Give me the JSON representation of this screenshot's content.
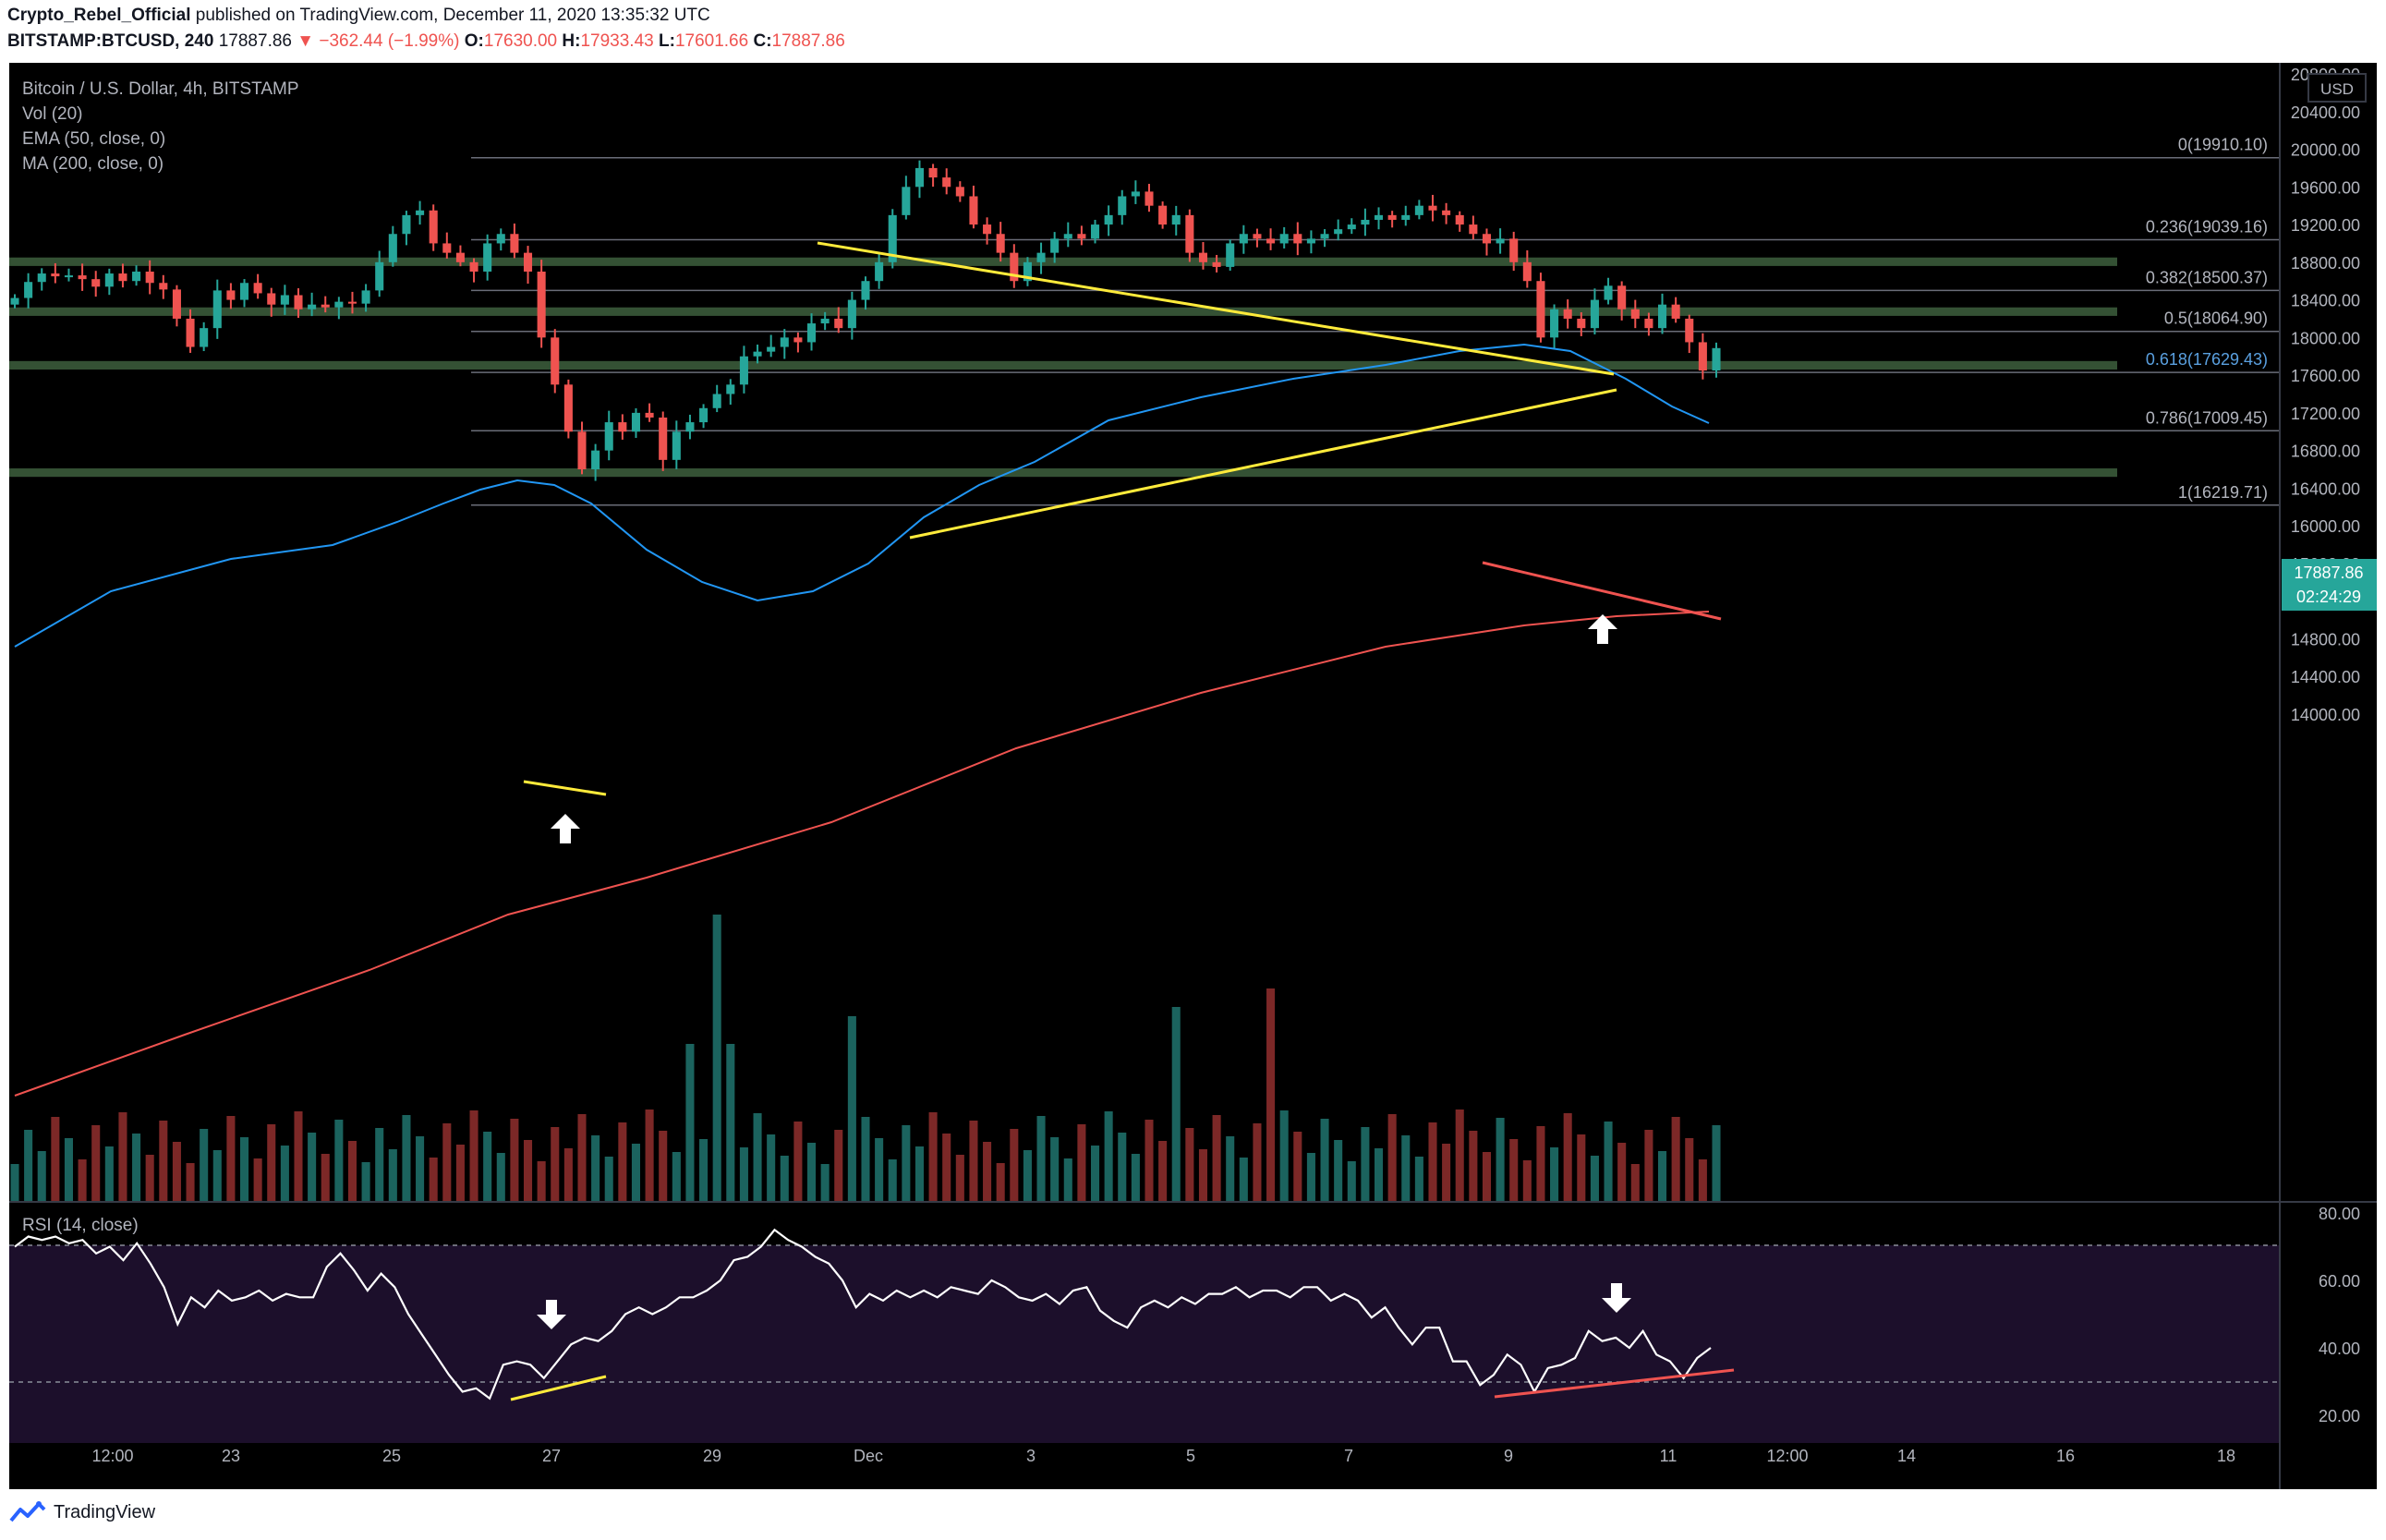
{
  "header": {
    "publisher": "Crypto_Rebel_Official",
    "published_text": "published on TradingView.com, December 11, 2020 13:35:32 UTC",
    "symbol": "BITSTAMP:BTCUSD, 240",
    "last_price": "17887.86",
    "change": "−362.44 (−1.99%)",
    "o_label": "O:",
    "o_value": "17630.00",
    "h_label": "H:",
    "h_value": "17933.43",
    "l_label": "L:",
    "l_value": "17601.66",
    "c_label": "C:",
    "c_value": "17887.86"
  },
  "legend": {
    "title": "Bitcoin / U.S. Dollar, 4h, BITSTAMP",
    "vol": "Vol (20)",
    "ema": "EMA (50, close, 0)",
    "ma": "MA (200, close, 0)",
    "rsi": "RSI (14, close)"
  },
  "currency_badge": "USD",
  "price_tag": {
    "price": "17887.86",
    "countdown": "02:24:29"
  },
  "fib_labels": [
    {
      "text": "0(19910.10)",
      "price": 19910.1
    },
    {
      "text": "0.236(19039.16)",
      "price": 19039.16
    },
    {
      "text": "0.382(18500.37)",
      "price": 18500.37
    },
    {
      "text": "0.5(18064.90)",
      "price": 18064.9
    },
    {
      "text": "0.618(17629.43)",
      "price": 17629.43
    },
    {
      "text": "0.786(17009.45)",
      "price": 17009.45
    },
    {
      "text": "1(16219.71)",
      "price": 16219.71
    }
  ],
  "footer": {
    "brand": "TradingView"
  },
  "colors": {
    "background": "#000000",
    "up": "#26a69a",
    "down": "#ef5350",
    "ema": "#2196f3",
    "ma": "#ef5350",
    "trendline": "#ffeb3b",
    "zone": "#3a5a3a",
    "rsi_band": "#1c0f2b",
    "rsi_line": "#ffffff"
  },
  "chart_data": [
    {
      "type": "candlestick",
      "title": "Bitcoin / U.S. Dollar, 4h, BITSTAMP",
      "interval": "4h",
      "ylim": [
        13800,
        21100
      ],
      "y_ticks": [
        "20800.00",
        "20400.00",
        "20000.00",
        "19600.00",
        "19200.00",
        "18800.00",
        "18400.00",
        "18000.00",
        "17600.00",
        "17200.00",
        "16800.00",
        "16400.00",
        "16000.00",
        "15600.00",
        "15200.00",
        "14800.00",
        "14400.00",
        "14000.00"
      ],
      "x_ticks": [
        "12:00",
        "23",
        "25",
        "27",
        "29",
        "Dec",
        "3",
        "5",
        "7",
        "9",
        "11",
        "12:00",
        "14",
        "16",
        "18"
      ],
      "resistance_support_zones": [
        [
          18760,
          18850
        ],
        [
          18230,
          18320
        ],
        [
          17660,
          17750
        ],
        [
          16520,
          16610
        ]
      ],
      "annotations": [
        "up arrow at 16200 (Nov 26)",
        "up arrow at 17500 (Dec 10)"
      ],
      "series": [
        {
          "name": "BTCUSD close",
          "values": [
            18420,
            18590,
            18680,
            18650,
            18660,
            18620,
            18540,
            18680,
            18600,
            18700,
            18580,
            18510,
            18200,
            17900,
            18100,
            18500,
            18400,
            18580,
            18470,
            18350,
            18450,
            18300,
            18350,
            18320,
            18380,
            18360,
            18500,
            18800,
            19100,
            19300,
            19350,
            19000,
            18900,
            18800,
            18700,
            19000,
            19100,
            18900,
            18700,
            18000,
            17500,
            17000,
            16600,
            16800,
            17100,
            17000,
            17200,
            17150,
            16700,
            17000,
            17100,
            17250,
            17400,
            17500,
            17800,
            17850,
            17900,
            18000,
            17950,
            18150,
            18200,
            18100,
            18400,
            18600,
            18800,
            19300,
            19600,
            19800,
            19700,
            19600,
            19500,
            19200,
            19100,
            18900,
            18600,
            18800,
            18900,
            19050,
            19100,
            19050,
            19200,
            19300,
            19500,
            19550,
            19400,
            19200,
            19300,
            18900,
            18800,
            18750,
            19000,
            19100,
            19050,
            19000,
            19100,
            19000,
            19050,
            19100,
            19150,
            19200,
            19250,
            19300,
            19250,
            19300,
            19400,
            19350,
            19300,
            19200,
            19100,
            19000,
            19050,
            18800,
            18600,
            18000,
            18300,
            18200,
            18100,
            18400,
            18550,
            18300,
            18200,
            18100,
            18350,
            18200,
            17950,
            17650,
            17887.86
          ]
        },
        {
          "name": "EMA (50, close, 0)",
          "note": "rises from ~17000 (Nov 21) to ~18880 (Dec 8), ends ~18550"
        },
        {
          "name": "MA (200, close, 0)",
          "note": "rises from ~14500 (Nov 21) to ~17650 (Dec 11)"
        },
        {
          "name": "Vol (20)",
          "note": "volume histogram; peak ~ Nov 26 spike"
        }
      ]
    },
    {
      "type": "line",
      "title": "RSI (14, close)",
      "ylim": [
        10,
        82
      ],
      "y_ticks": [
        "80.00",
        "60.00",
        "40.00",
        "20.00"
      ],
      "bands": [
        30,
        70
      ],
      "series": [
        {
          "name": "RSI",
          "values": [
            70,
            73,
            72,
            73,
            71,
            72,
            68,
            70,
            66,
            71,
            65,
            58,
            47,
            55,
            52,
            57,
            54,
            55,
            57,
            54,
            56,
            55,
            55,
            64,
            68,
            63,
            57,
            62,
            58,
            50,
            44,
            38,
            32,
            27,
            28,
            25,
            35,
            36,
            35,
            31,
            36,
            41,
            43,
            42,
            45,
            50,
            52,
            50,
            52,
            55,
            55,
            57,
            60,
            66,
            67,
            70,
            75,
            72,
            70,
            67,
            65,
            60,
            52,
            56,
            54,
            57,
            55,
            57,
            55,
            58,
            57,
            56,
            60,
            58,
            55,
            54,
            56,
            53,
            57,
            58,
            51,
            48,
            46,
            52,
            54,
            52,
            55,
            53,
            56,
            56,
            58,
            55,
            57,
            57,
            55,
            58,
            58,
            54,
            56,
            54,
            49,
            52,
            46,
            41,
            46,
            46,
            36,
            36,
            29,
            32,
            38,
            35,
            27,
            34,
            35,
            37,
            45,
            42,
            43,
            40,
            45,
            38,
            36,
            31,
            37,
            40
          ]
        }
      ]
    }
  ]
}
